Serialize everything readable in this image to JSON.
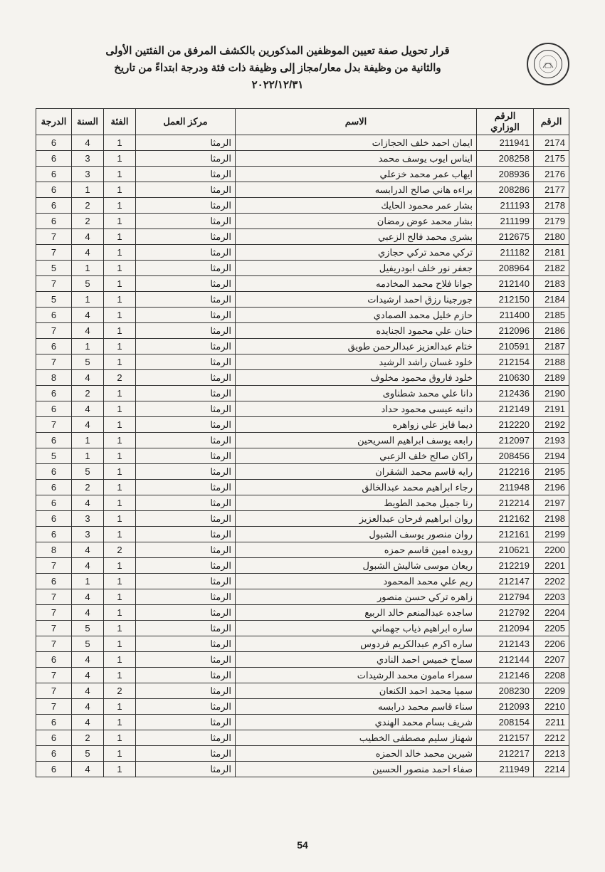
{
  "title": {
    "line1": "قرار تحويل صفة تعيين الموظفين المذكورين بالكشف المرفق من الفئتين الأولى",
    "line2": "والثانية من وظيفة بدل معار/مجاز إلى وظيفة ذات فئة ودرجة  ابتداءً من تاريخ",
    "line3": "٢٠٢٢/١٢/٣١"
  },
  "headers": {
    "raqm": "الرقم",
    "wazari": "الرقم الوزاري",
    "name": "الاسم",
    "center": "مركز العمل",
    "category": "الفئة",
    "year": "السنة",
    "grade": "الدرجة"
  },
  "page_number": "54",
  "rows": [
    {
      "r": "2174",
      "w": "211941",
      "n": "ايمان احمد خلف الحجازات",
      "c": "الرمثا",
      "f": "1",
      "s": "4",
      "g": "6"
    },
    {
      "r": "2175",
      "w": "208258",
      "n": "ايناس ايوب يوسف محمد",
      "c": "الرمثا",
      "f": "1",
      "s": "3",
      "g": "6"
    },
    {
      "r": "2176",
      "w": "208936",
      "n": "ايهاب عمر محمد خزعلي",
      "c": "الرمثا",
      "f": "1",
      "s": "3",
      "g": "6"
    },
    {
      "r": "2177",
      "w": "208286",
      "n": "براءه هاني صالح الدرابسه",
      "c": "الرمثا",
      "f": "1",
      "s": "1",
      "g": "6"
    },
    {
      "r": "2178",
      "w": "211193",
      "n": "بشار عمر محمود الحايك",
      "c": "الرمثا",
      "f": "1",
      "s": "2",
      "g": "6"
    },
    {
      "r": "2179",
      "w": "211199",
      "n": "بشار محمد عوض رمضان",
      "c": "الرمثا",
      "f": "1",
      "s": "2",
      "g": "6"
    },
    {
      "r": "2180",
      "w": "212675",
      "n": "بشرى محمد فالح الزعبي",
      "c": "الرمثا",
      "f": "1",
      "s": "4",
      "g": "7"
    },
    {
      "r": "2181",
      "w": "211182",
      "n": "تركي محمد تركي حجازي",
      "c": "الرمثا",
      "f": "1",
      "s": "4",
      "g": "7"
    },
    {
      "r": "2182",
      "w": "208964",
      "n": "جعفر نور خلف ابودريفيل",
      "c": "الرمثا",
      "f": "1",
      "s": "1",
      "g": "5"
    },
    {
      "r": "2183",
      "w": "212140",
      "n": "جوانا فلاح محمد المخادمه",
      "c": "الرمثا",
      "f": "1",
      "s": "5",
      "g": "7"
    },
    {
      "r": "2184",
      "w": "212150",
      "n": "جورجينا رزق احمد ارشيدات",
      "c": "الرمثا",
      "f": "1",
      "s": "1",
      "g": "5"
    },
    {
      "r": "2185",
      "w": "211400",
      "n": "حازم خليل محمد الصمادي",
      "c": "الرمثا",
      "f": "1",
      "s": "4",
      "g": "6"
    },
    {
      "r": "2186",
      "w": "212096",
      "n": "حنان علي محمود الجنايده",
      "c": "الرمثا",
      "f": "1",
      "s": "4",
      "g": "7"
    },
    {
      "r": "2187",
      "w": "210591",
      "n": "ختام عبدالعزيز عبدالرحمن طويق",
      "c": "الرمثا",
      "f": "1",
      "s": "1",
      "g": "6"
    },
    {
      "r": "2188",
      "w": "212154",
      "n": "خلود غسان راشد الرشيد",
      "c": "الرمثا",
      "f": "1",
      "s": "5",
      "g": "7"
    },
    {
      "r": "2189",
      "w": "210630",
      "n": "خلود فاروق محمود مخلوف",
      "c": "الرمثا",
      "f": "2",
      "s": "4",
      "g": "8"
    },
    {
      "r": "2190",
      "w": "212436",
      "n": "دانا علي محمد شطناوى",
      "c": "الرمثا",
      "f": "1",
      "s": "2",
      "g": "6"
    },
    {
      "r": "2191",
      "w": "212149",
      "n": "دانيه عيسى محمود حداد",
      "c": "الرمثا",
      "f": "1",
      "s": "4",
      "g": "6"
    },
    {
      "r": "2192",
      "w": "212220",
      "n": "ديما فايز علي زواهره",
      "c": "الرمثا",
      "f": "1",
      "s": "4",
      "g": "7"
    },
    {
      "r": "2193",
      "w": "212097",
      "n": "رابعه يوسف ابراهيم السريحين",
      "c": "الرمثا",
      "f": "1",
      "s": "1",
      "g": "6"
    },
    {
      "r": "2194",
      "w": "208456",
      "n": "راكان صالح خلف الزعبي",
      "c": "الرمثا",
      "f": "1",
      "s": "1",
      "g": "5"
    },
    {
      "r": "2195",
      "w": "212216",
      "n": "رايه قاسم محمد الشقران",
      "c": "الرمثا",
      "f": "1",
      "s": "5",
      "g": "6"
    },
    {
      "r": "2196",
      "w": "211948",
      "n": "رجاء ابراهيم محمد عبدالخالق",
      "c": "الرمثا",
      "f": "1",
      "s": "2",
      "g": "6"
    },
    {
      "r": "2197",
      "w": "212214",
      "n": "رنا جميل محمد الطويط",
      "c": "الرمثا",
      "f": "1",
      "s": "4",
      "g": "6"
    },
    {
      "r": "2198",
      "w": "212162",
      "n": "روان ابراهيم فرحان عبدالعزيز",
      "c": "الرمثا",
      "f": "1",
      "s": "3",
      "g": "6"
    },
    {
      "r": "2199",
      "w": "212161",
      "n": "روان منصور يوسف الشبول",
      "c": "الرمثا",
      "f": "1",
      "s": "3",
      "g": "6"
    },
    {
      "r": "2200",
      "w": "210621",
      "n": "رويده امين قاسم حمزه",
      "c": "الرمثا",
      "f": "2",
      "s": "4",
      "g": "8"
    },
    {
      "r": "2201",
      "w": "212219",
      "n": "ريعان موسى شاليش الشبول",
      "c": "الرمثا",
      "f": "1",
      "s": "4",
      "g": "7"
    },
    {
      "r": "2202",
      "w": "212147",
      "n": "ريم علي محمد المحمود",
      "c": "الرمثا",
      "f": "1",
      "s": "1",
      "g": "6"
    },
    {
      "r": "2203",
      "w": "212794",
      "n": "زاهره تركي حسن منصور",
      "c": "الرمثا",
      "f": "1",
      "s": "4",
      "g": "7"
    },
    {
      "r": "2204",
      "w": "212792",
      "n": "ساجده عبدالمنعم خالد الربيع",
      "c": "الرمثا",
      "f": "1",
      "s": "4",
      "g": "7"
    },
    {
      "r": "2205",
      "w": "212094",
      "n": "ساره ابراهيم ذياب جهماني",
      "c": "الرمثا",
      "f": "1",
      "s": "5",
      "g": "7"
    },
    {
      "r": "2206",
      "w": "212143",
      "n": "ساره اكرم عبدالكريم فردوس",
      "c": "الرمثا",
      "f": "1",
      "s": "5",
      "g": "7"
    },
    {
      "r": "2207",
      "w": "212144",
      "n": "سماح خميس احمد النادي",
      "c": "الرمثا",
      "f": "1",
      "s": "4",
      "g": "6"
    },
    {
      "r": "2208",
      "w": "212146",
      "n": "سمراء مامون محمد الرشيدات",
      "c": "الرمثا",
      "f": "1",
      "s": "4",
      "g": "7"
    },
    {
      "r": "2209",
      "w": "208230",
      "n": "سميا محمد احمد الكنعان",
      "c": "الرمثا",
      "f": "2",
      "s": "4",
      "g": "7"
    },
    {
      "r": "2210",
      "w": "212093",
      "n": "سناء قاسم محمد درابسه",
      "c": "الرمثا",
      "f": "1",
      "s": "4",
      "g": "7"
    },
    {
      "r": "2211",
      "w": "208154",
      "n": "شريف بسام محمد الهندي",
      "c": "الرمثا",
      "f": "1",
      "s": "4",
      "g": "6"
    },
    {
      "r": "2212",
      "w": "212157",
      "n": "شهناز سليم مصطفى الخطيب",
      "c": "الرمثا",
      "f": "1",
      "s": "2",
      "g": "6"
    },
    {
      "r": "2213",
      "w": "212217",
      "n": "شيرين محمد خالد الحمزه",
      "c": "الرمثا",
      "f": "1",
      "s": "5",
      "g": "6"
    },
    {
      "r": "2214",
      "w": "211949",
      "n": "صفاء احمد منصور الحسين",
      "c": "الرمثا",
      "f": "1",
      "s": "4",
      "g": "6"
    }
  ]
}
